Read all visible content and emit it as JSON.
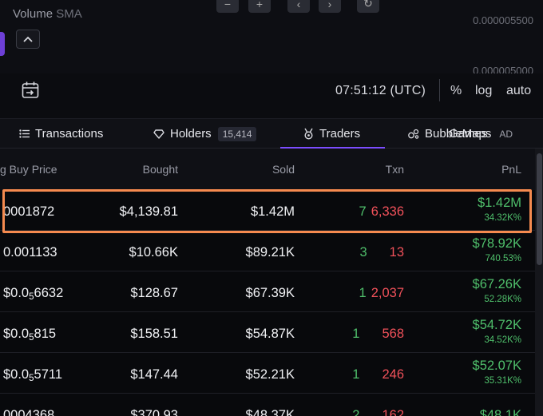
{
  "chart": {
    "volume_label": "Volume",
    "volume_sub": "SMA",
    "price_ticks": [
      "0.000005500",
      "0.000005000"
    ],
    "collapse_icon": "chevron-up-icon",
    "controls": [
      "−",
      "+",
      "‹",
      "›",
      "↻"
    ]
  },
  "toolbar": {
    "time": "07:51:12 (UTC)",
    "percent_label": "%",
    "log_label": "log",
    "auto_label": "auto"
  },
  "tabs": [
    {
      "label": "Transactions",
      "icon": "list-icon"
    },
    {
      "label": "Holders",
      "icon": "diamond-icon",
      "badge": "15,414"
    },
    {
      "label": "Traders",
      "icon": "medal-icon"
    },
    {
      "label": "BubbleMaps",
      "icon": "bubbles-icon",
      "overlay": "Games",
      "ad": "AD"
    }
  ],
  "table": {
    "headers": {
      "price": "g Buy Price",
      "bought": "Bought",
      "sold": "Sold",
      "txn": "Txn",
      "pnl": "PnL"
    },
    "rows": [
      {
        "price_pre": "0001872",
        "price_sub": "",
        "price_post": "",
        "bought": "$4,139.81",
        "sold": "$1.42M",
        "buys": "7",
        "sells": "6,336",
        "pnl": "$1.42M",
        "pnl_pct": "34.32K%"
      },
      {
        "price_pre": "0.001133",
        "price_sub": "",
        "price_post": "",
        "bought": "$10.66K",
        "sold": "$89.21K",
        "buys": "3",
        "sells": "13",
        "pnl": "$78.92K",
        "pnl_pct": "740.53%"
      },
      {
        "price_pre": "$0.0",
        "price_sub": "5",
        "price_post": "6632",
        "bought": "$128.67",
        "sold": "$67.39K",
        "buys": "1",
        "sells": "2,037",
        "pnl": "$67.26K",
        "pnl_pct": "52.28K%"
      },
      {
        "price_pre": "$0.0",
        "price_sub": "5",
        "price_post": "815",
        "bought": "$158.51",
        "sold": "$54.87K",
        "buys": "1",
        "sells": "568",
        "pnl": "$54.72K",
        "pnl_pct": "34.52K%"
      },
      {
        "price_pre": "$0.0",
        "price_sub": "5",
        "price_post": "5711",
        "bought": "$147.44",
        "sold": "$52.21K",
        "buys": "1",
        "sells": "246",
        "pnl": "$52.07K",
        "pnl_pct": "35.31K%"
      },
      {
        "price_pre": "0004368",
        "price_sub": "",
        "price_post": "",
        "bought": "$370.93",
        "sold": "$48.37K",
        "buys": "2",
        "sells": "162",
        "pnl": "$48.1K",
        "pnl_pct": ""
      }
    ]
  },
  "colors": {
    "accent": "#7c4dff",
    "buy": "#4fbf6b",
    "sell": "#f0515a",
    "highlight": "#f58a4f"
  }
}
